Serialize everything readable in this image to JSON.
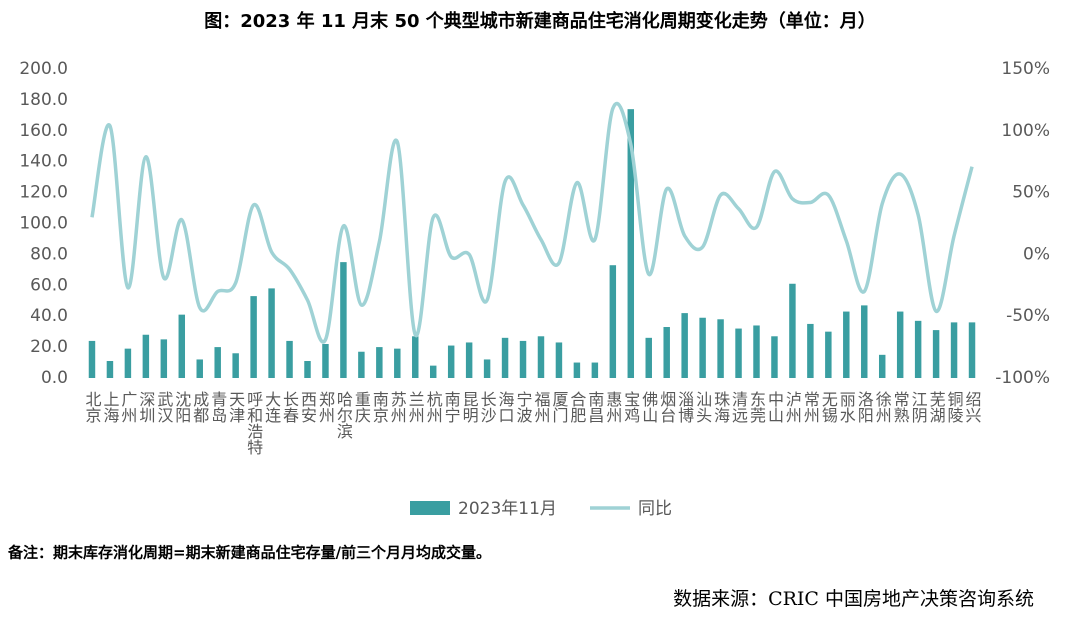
{
  "chart_data": {
    "type": "bar-line",
    "title": "图：2023 年 11 月末 50 个典型城市新建商品住宅消化周期变化走势（单位：月）",
    "categories": [
      "北京",
      "上海",
      "广州",
      "深圳",
      "武汉",
      "沈阳",
      "成都",
      "青岛",
      "天津",
      "呼和浩特",
      "大连",
      "长春",
      "西安",
      "郑州",
      "哈尔滨",
      "重庆",
      "南京",
      "苏州",
      "兰州",
      "杭州",
      "南宁",
      "昆明",
      "长沙",
      "海口",
      "宁波",
      "福州",
      "厦门",
      "合肥",
      "南昌",
      "惠州",
      "宝鸡",
      "佛山",
      "烟台",
      "淄博",
      "汕头",
      "珠海",
      "清远",
      "东莞",
      "中山",
      "泸州",
      "常州",
      "无锡",
      "丽水",
      "洛阳",
      "徐州",
      "常熟",
      "江阴",
      "芜湖",
      "铜陵",
      "绍兴"
    ],
    "series": [
      {
        "name": "2023年11月",
        "type": "bar",
        "color": "#3a9ea1",
        "values": [
          24,
          11,
          19,
          28,
          25,
          41,
          12,
          20,
          16,
          53,
          58,
          24,
          11,
          22,
          75,
          17,
          20,
          19,
          27,
          8,
          21,
          23,
          12,
          26,
          24,
          27,
          23,
          10,
          10,
          73,
          174,
          26,
          33,
          42,
          39,
          38,
          32,
          34,
          27,
          61,
          35,
          30,
          43,
          47,
          15,
          43,
          37,
          31,
          36,
          36
        ]
      },
      {
        "name": "同比",
        "type": "line",
        "axis": "y2",
        "color": "#9fd2d5",
        "values": [
          30,
          104,
          -27,
          79,
          -19,
          28,
          -43,
          -30,
          -23,
          40,
          2,
          -12,
          -37,
          -69,
          23,
          -41,
          10,
          91,
          -65,
          30,
          -2,
          0,
          -37,
          59,
          40,
          12,
          -7,
          58,
          12,
          118,
          89,
          -16,
          53,
          15,
          6,
          48,
          37,
          22,
          67,
          45,
          42,
          48,
          11,
          -30,
          41,
          65,
          32,
          -46,
          15,
          71
        ]
      }
    ],
    "ylim": [
      0,
      200
    ],
    "yticks": [
      {
        "value": 0,
        "label": "0.0"
      },
      {
        "value": 20,
        "label": "20.0"
      },
      {
        "value": 40,
        "label": "40.0"
      },
      {
        "value": 60,
        "label": "60.0"
      },
      {
        "value": 80,
        "label": "80.0"
      },
      {
        "value": 100,
        "label": "100.0"
      },
      {
        "value": 120,
        "label": "120.0"
      },
      {
        "value": 140,
        "label": "140.0"
      },
      {
        "value": 160,
        "label": "160.0"
      },
      {
        "value": 180,
        "label": "180.0"
      },
      {
        "value": 200,
        "label": "200.0"
      }
    ],
    "y2lim": [
      -100,
      150
    ],
    "y2ticks": [
      {
        "value": -100,
        "label": "-100%"
      },
      {
        "value": -50,
        "label": "-50%"
      },
      {
        "value": 0,
        "label": "0%"
      },
      {
        "value": 50,
        "label": "50%"
      },
      {
        "value": 100,
        "label": "100%"
      },
      {
        "value": 150,
        "label": "150%"
      }
    ],
    "legend": "bottom"
  },
  "note": "备注：期末库存消化周期=期末新建商品住宅存量/前三个月月均成交量。",
  "source": "数据来源：CRIC 中国房地产决策咨询系统"
}
